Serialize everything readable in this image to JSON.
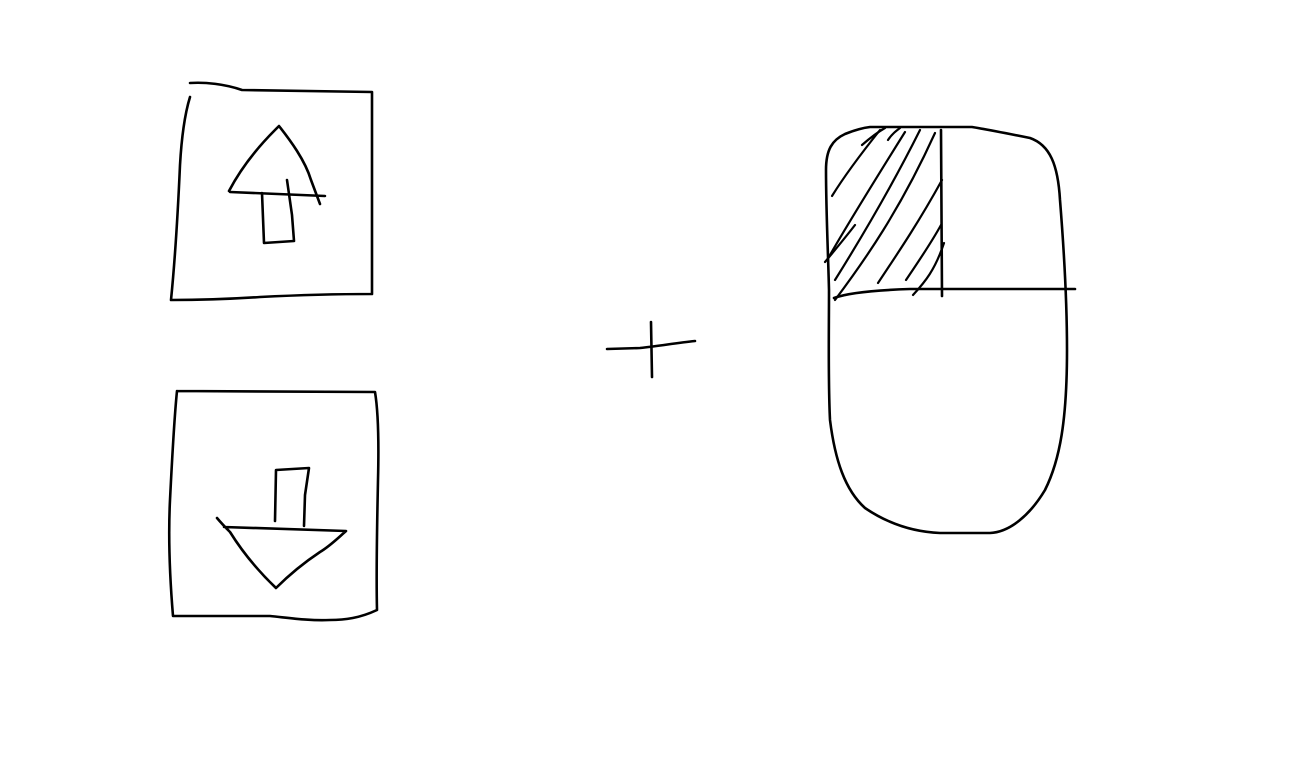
{
  "diagram": {
    "keys": [
      {
        "name": "up-arrow-key",
        "icon": "arrow-up-icon"
      },
      {
        "name": "down-arrow-key",
        "icon": "arrow-down-icon"
      }
    ],
    "operator": {
      "symbol": "plus-icon"
    },
    "mouse": {
      "icon": "mouse-icon",
      "highlighted_button": "left",
      "highlight_style": "hatched"
    },
    "colors": {
      "ink": "#000000",
      "background": "#ffffff"
    }
  }
}
